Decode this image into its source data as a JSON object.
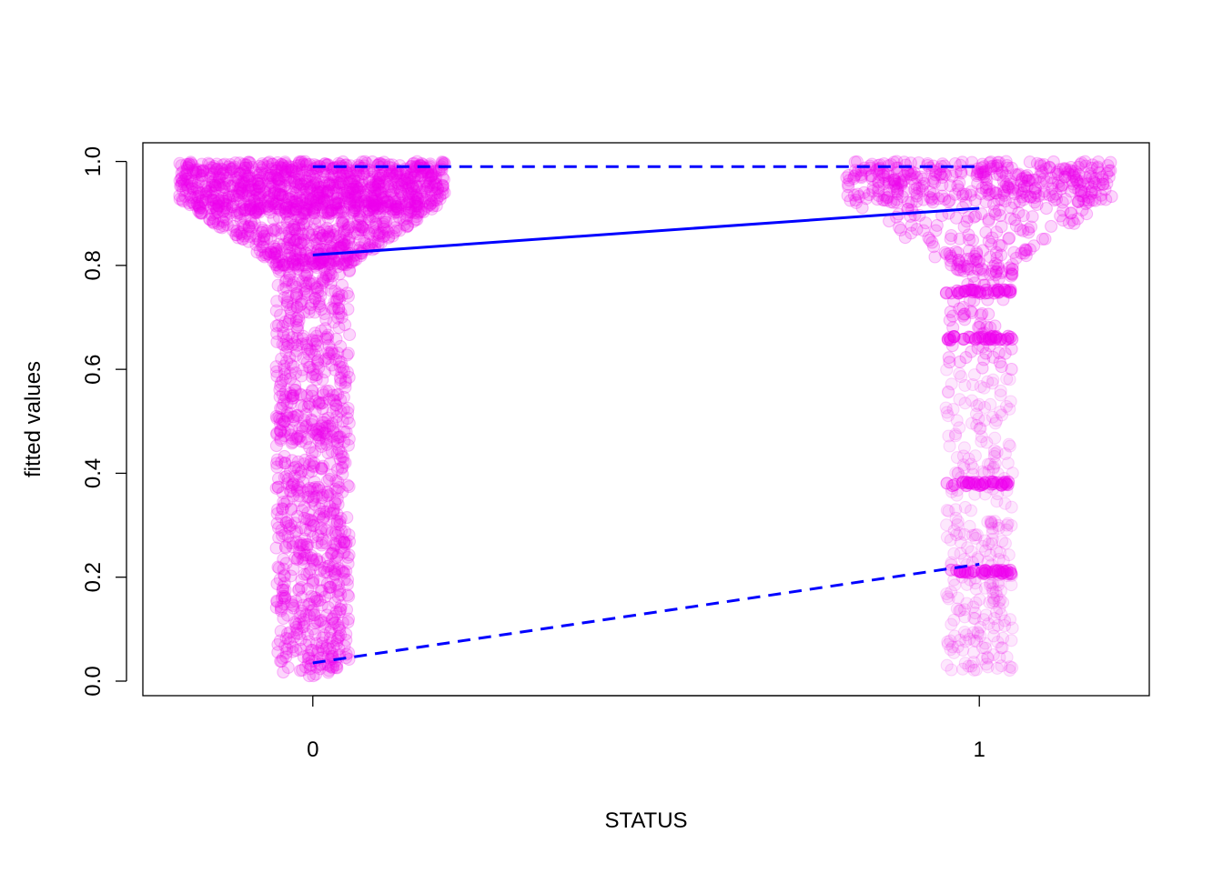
{
  "chart_data": {
    "type": "scatter",
    "title": "",
    "xlabel": "STATUS",
    "ylabel": "fitted values",
    "x_categories": [
      "0",
      "1"
    ],
    "x_values": [
      0,
      1
    ],
    "xlim": [
      -0.255,
      1.255
    ],
    "ylim": [
      -0.028,
      1.036
    ],
    "y_ticks": [
      0.0,
      0.2,
      0.4,
      0.6,
      0.8,
      1.0
    ],
    "y_tick_labels": [
      "0.0",
      "0.2",
      "0.4",
      "0.6",
      "0.8",
      "1.0"
    ],
    "grid": false,
    "legend": "none",
    "point_color": "#ee00ee",
    "line_color": "#0000ff",
    "jitter_groups": [
      {
        "x": 0,
        "description": "dense cloud",
        "y_min": 0.01,
        "y_max": 1.0,
        "mass_near_top": 0.95
      },
      {
        "x": 1,
        "description": "sparser cloud with bands",
        "y_min": 0.02,
        "y_max": 1.0,
        "bands": [
          0.75,
          0.66,
          0.38,
          0.21
        ]
      }
    ],
    "series": [
      {
        "style": "solid",
        "x": [
          0,
          1
        ],
        "y": [
          0.82,
          0.91
        ]
      },
      {
        "style": "dashed",
        "x": [
          0,
          1
        ],
        "y": [
          0.99,
          0.99
        ]
      },
      {
        "style": "dashed",
        "x": [
          0,
          1
        ],
        "y": [
          0.035,
          0.225
        ]
      }
    ]
  }
}
